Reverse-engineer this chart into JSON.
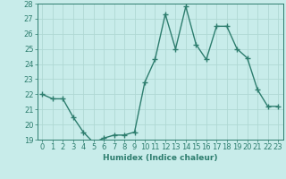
{
  "x": [
    0,
    1,
    2,
    3,
    4,
    5,
    6,
    7,
    8,
    9,
    10,
    11,
    12,
    13,
    14,
    15,
    16,
    17,
    18,
    19,
    20,
    21,
    22,
    23
  ],
  "y": [
    22,
    21.7,
    21.7,
    20.5,
    19.5,
    18.8,
    19.1,
    19.3,
    19.3,
    19.5,
    22.8,
    24.3,
    27.3,
    25.0,
    27.8,
    25.3,
    24.3,
    26.5,
    26.5,
    25.0,
    24.4,
    22.3,
    21.2,
    21.2
  ],
  "line_color": "#2d7d6e",
  "marker": "D",
  "marker_size": 2.0,
  "bg_color": "#c8ecea",
  "grid_color": "#b0d8d4",
  "xlabel": "Humidex (Indice chaleur)",
  "xlim": [
    -0.5,
    23.5
  ],
  "ylim": [
    19,
    28
  ],
  "yticks": [
    19,
    20,
    21,
    22,
    23,
    24,
    25,
    26,
    27,
    28
  ],
  "xticks": [
    0,
    1,
    2,
    3,
    4,
    5,
    6,
    7,
    8,
    9,
    10,
    11,
    12,
    13,
    14,
    15,
    16,
    17,
    18,
    19,
    20,
    21,
    22,
    23
  ],
  "xlabel_fontsize": 6.5,
  "tick_fontsize": 6.0,
  "line_width": 1.0
}
